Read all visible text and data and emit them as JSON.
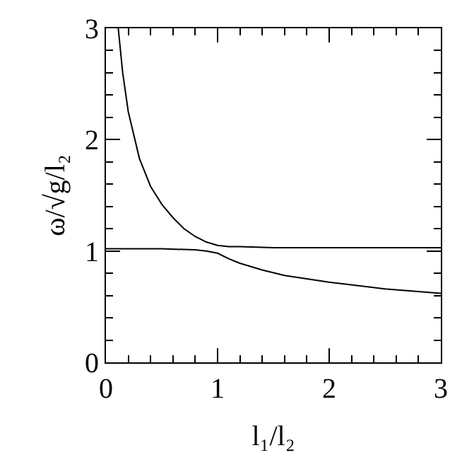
{
  "chart_data": {
    "type": "line",
    "xlabel": "l₁/l₂",
    "ylabel": "ω/√g/l₂",
    "xlim": [
      0,
      3
    ],
    "ylim": [
      0,
      3
    ],
    "xticks": [
      0,
      1,
      2,
      3
    ],
    "yticks": [
      0,
      1,
      2,
      3
    ],
    "legend": false,
    "marker": "none",
    "line_style": "solid",
    "series": [
      {
        "color": "#000000",
        "x": [
          0.11,
          0.15,
          0.2,
          0.3,
          0.4,
          0.5,
          0.6,
          0.7,
          0.8,
          0.9,
          1.0,
          1.1,
          1.2,
          1.5,
          2.0,
          2.5,
          3.0
        ],
        "values": [
          3.0,
          2.6,
          2.25,
          1.83,
          1.58,
          1.42,
          1.3,
          1.2,
          1.13,
          1.08,
          1.05,
          1.04,
          1.04,
          1.03,
          1.03,
          1.03,
          1.03
        ]
      },
      {
        "color": "#000000",
        "x": [
          0.0,
          0.5,
          0.8,
          0.9,
          1.0,
          1.1,
          1.2,
          1.4,
          1.6,
          2.0,
          2.5,
          3.0
        ],
        "values": [
          1.02,
          1.02,
          1.01,
          1.0,
          0.98,
          0.93,
          0.89,
          0.83,
          0.78,
          0.72,
          0.66,
          0.62
        ]
      }
    ]
  }
}
